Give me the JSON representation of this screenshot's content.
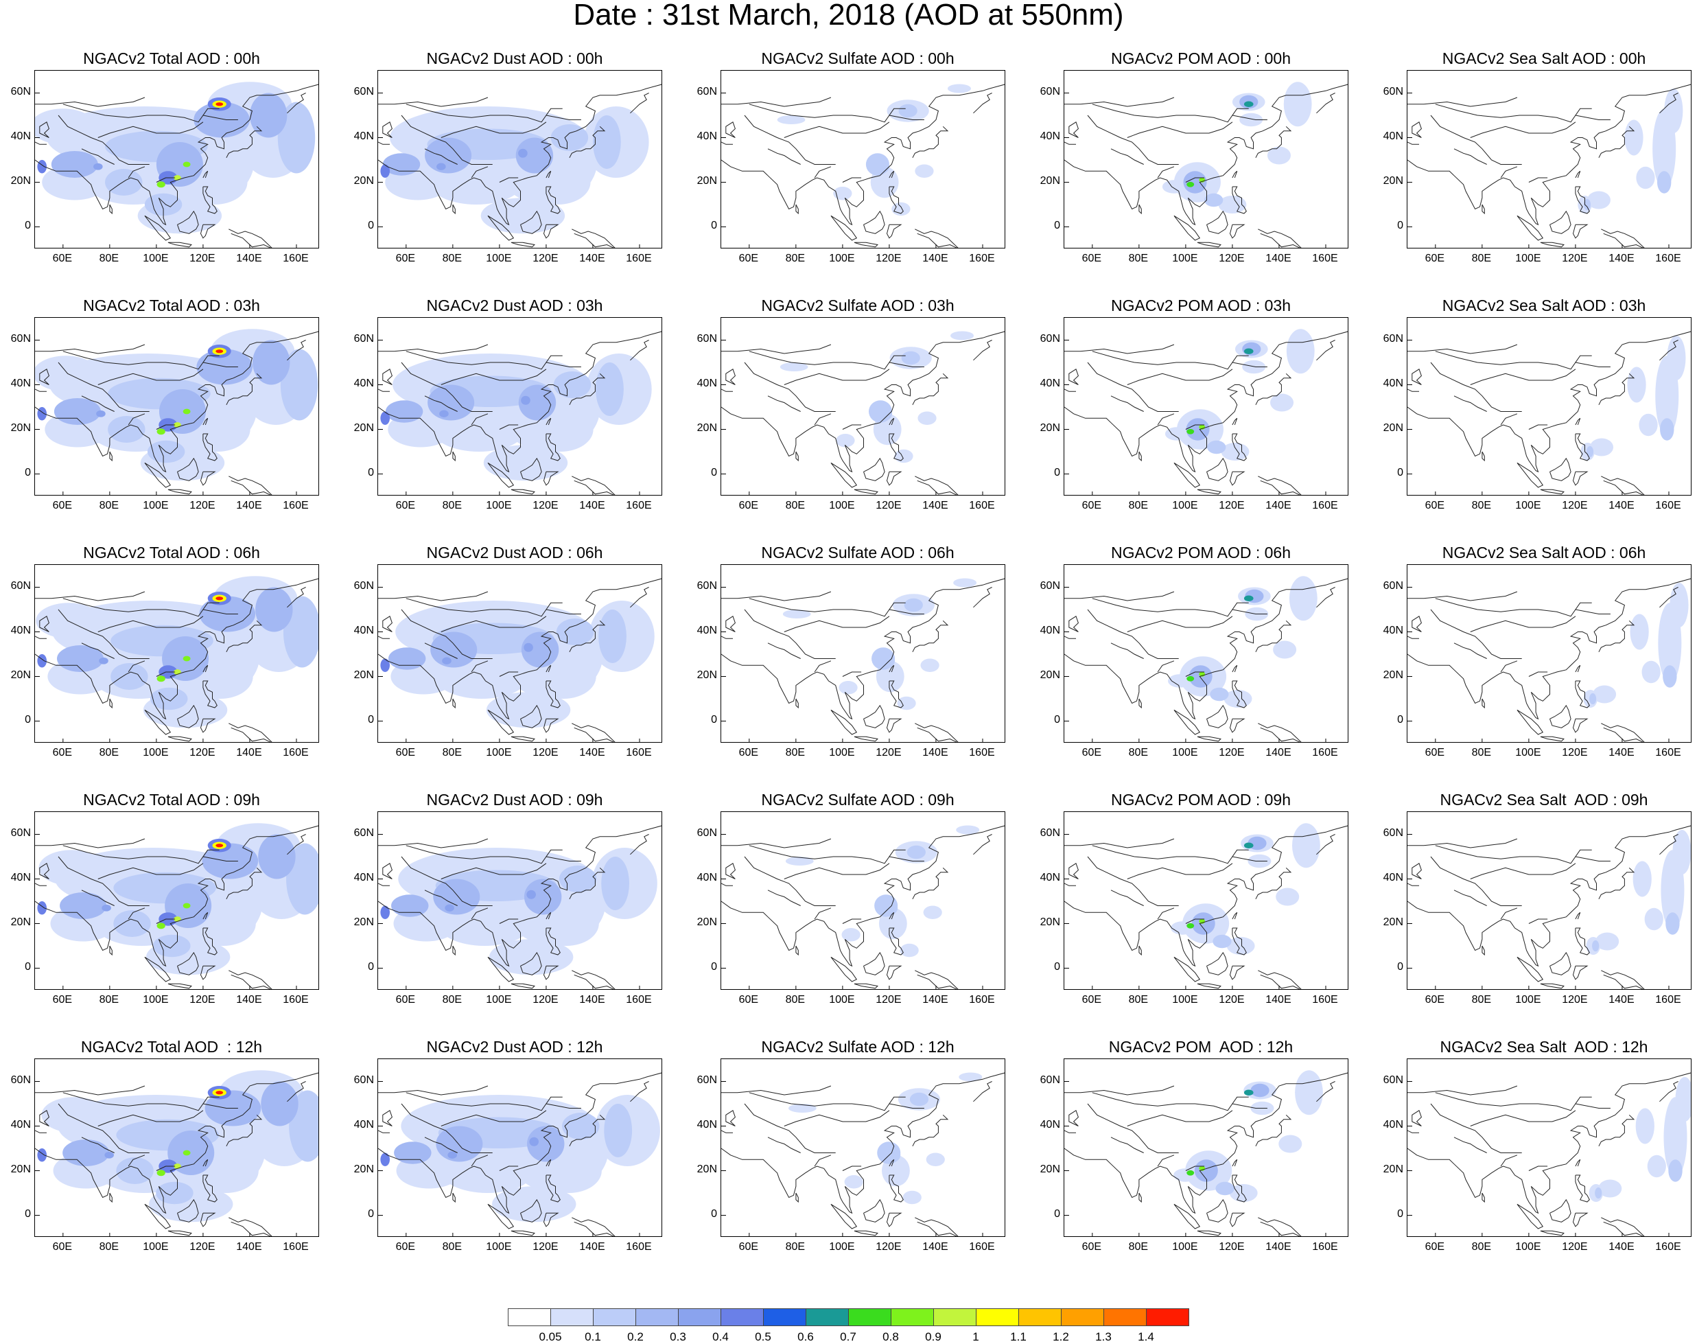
{
  "title": "Date : 31st March, 2018 (AOD at 550nm)",
  "lon_ticks": [
    "60E",
    "80E",
    "100E",
    "120E",
    "140E",
    "160E"
  ],
  "lat_ticks": [
    "60N",
    "40N",
    "20N",
    "0"
  ],
  "rows": [
    [
      "NGACv2 Total AOD : 00h",
      "NGACv2 Dust AOD : 00h",
      "NGACv2 Sulfate AOD : 00h",
      "NGACv2 POM AOD : 00h",
      "NGACv2 Sea Salt AOD : 00h"
    ],
    [
      "NGACv2 Total AOD : 03h",
      "NGACv2 Dust AOD : 03h",
      "NGACv2 Sulfate AOD : 03h",
      "NGACv2 POM AOD : 03h",
      "NGACv2 Sea Salt AOD : 03h"
    ],
    [
      "NGACv2 Total AOD : 06h",
      "NGACv2 Dust AOD : 06h",
      "NGACv2 Sulfate AOD : 06h",
      "NGACv2 POM AOD : 06h",
      "NGACv2 Sea Salt AOD : 06h"
    ],
    [
      "NGACv2 Total AOD : 09h",
      "NGACv2 Dust AOD : 09h",
      "NGACv2 Sulfate AOD : 09h",
      "NGACv2 POM AOD : 09h",
      "NGACv2 Sea Salt  AOD : 09h"
    ],
    [
      "NGACv2 Total AOD  : 12h",
      "NGACv2 Dust AOD : 12h",
      "NGACv2 Sulfate AOD : 12h",
      "NGACv2 POM  AOD : 12h",
      "NGACv2 Sea Salt  AOD : 12h"
    ]
  ],
  "colorbar": {
    "labels": [
      "0.05",
      "0.1",
      "0.2",
      "0.3",
      "0.4",
      "0.5",
      "0.6",
      "0.7",
      "0.8",
      "0.9",
      "1",
      "1.1",
      "1.2",
      "1.3",
      "1.4"
    ],
    "colors": [
      "#ffffff",
      "#d6e0fb",
      "#bccdf8",
      "#a3b8f3",
      "#8aa3ee",
      "#6a80e8",
      "#1e5fe6",
      "#1a9a96",
      "#3adc1e",
      "#7ef21c",
      "#c2f53c",
      "#ffff00",
      "#ffc400",
      "#ffa000",
      "#ff7400",
      "#ff1c00"
    ]
  }
}
